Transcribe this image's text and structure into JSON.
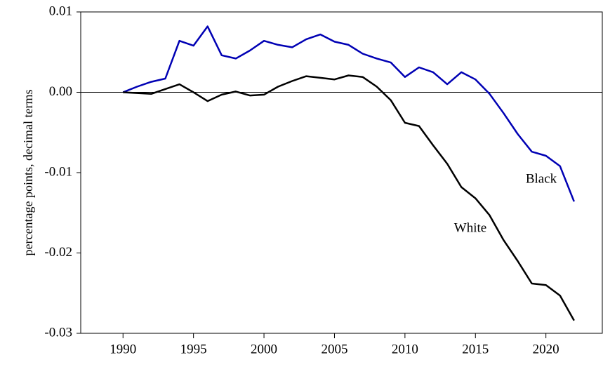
{
  "chart_data": {
    "type": "line",
    "y_label": "percentage points, decimal terms",
    "x": [
      1990,
      1991,
      1992,
      1993,
      1994,
      1995,
      1996,
      1997,
      1998,
      1999,
      2000,
      2001,
      2002,
      2003,
      2004,
      2005,
      2006,
      2007,
      2008,
      2009,
      2010,
      2011,
      2012,
      2013,
      2014,
      2015,
      2016,
      2017,
      2018,
      2019,
      2020,
      2021,
      2022
    ],
    "series": [
      {
        "name": "Black",
        "color": "#0000b4",
        "values": [
          0,
          0.0007,
          0.0013,
          0.0017,
          0.0064,
          0.0058,
          0.0082,
          0.0046,
          0.0042,
          0.0052,
          0.0064,
          0.0059,
          0.0056,
          0.0066,
          0.0072,
          0.0063,
          0.0059,
          0.0048,
          0.0042,
          0.0037,
          0.0019,
          0.0031,
          0.0025,
          0.001,
          0.0025,
          0.0016,
          -0.0002,
          -0.0026,
          -0.0052,
          -0.0074,
          -0.0079,
          -0.0092,
          -0.0136
        ]
      },
      {
        "name": "White",
        "color": "#000000",
        "values": [
          0,
          -0.0001,
          -0.0002,
          0.0004,
          0.001,
          0,
          -0.0011,
          -0.0003,
          0.0001,
          -0.0004,
          -0.0003,
          0.0007,
          0.0014,
          0.002,
          0.0018,
          0.0016,
          0.0021,
          0.0019,
          0.0007,
          -0.001,
          -0.0038,
          -0.0042,
          -0.0066,
          -0.0089,
          -0.0118,
          -0.0132,
          -0.0153,
          -0.0184,
          -0.021,
          -0.0238,
          -0.024,
          -0.0253,
          -0.0284
        ]
      }
    ],
    "xlim": [
      1987,
      2024
    ],
    "xticks": [
      1990,
      1995,
      2000,
      2005,
      2010,
      2015,
      2020
    ],
    "ylim": [
      -0.03,
      0.01
    ],
    "yticks": [
      -0.03,
      -0.02,
      -0.01,
      {
        "value": 0,
        "label": "0.00"
      },
      0.01
    ],
    "zero_line": true
  }
}
